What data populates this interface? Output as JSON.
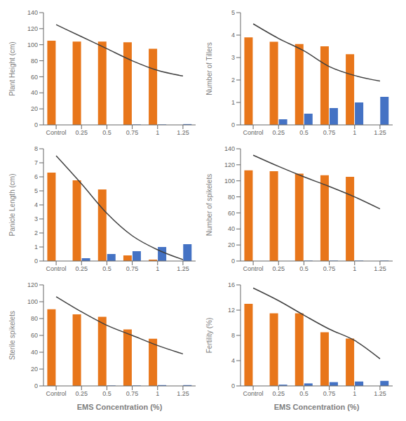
{
  "chart_data": [
    {
      "type": "bar",
      "categories": [
        "Control",
        "0.25",
        "0.5",
        "0.75",
        "1",
        "1.25"
      ],
      "series": [
        {
          "color": "#E8761A",
          "values": [
            105,
            104,
            104,
            103,
            95,
            0
          ]
        },
        {
          "color": "#4472C4",
          "values": [
            0,
            0,
            0,
            0.5,
            0.5,
            1.0
          ]
        },
        {
          "type": "line",
          "color": "#404040",
          "values": [
            125,
            110,
            95,
            80,
            68,
            61
          ]
        }
      ],
      "ylim": [
        0,
        140
      ],
      "yticks": [
        0,
        20,
        40,
        60,
        80,
        100,
        120,
        140
      ],
      "ylabel": "Plant Height (cm)",
      "grid": false
    },
    {
      "type": "bar",
      "categories": [
        "Control",
        "0.25",
        "0.5",
        "0.75",
        "1",
        "1.25"
      ],
      "series": [
        {
          "color": "#E8761A",
          "values": [
            3.9,
            3.7,
            3.6,
            3.5,
            3.15,
            0
          ]
        },
        {
          "color": "#4472C4",
          "values": [
            0,
            0.25,
            0.5,
            0.75,
            1.0,
            1.25
          ]
        },
        {
          "type": "line",
          "color": "#404040",
          "values": [
            4.5,
            3.85,
            3.3,
            2.6,
            2.2,
            1.95
          ]
        }
      ],
      "ylim": [
        0,
        5
      ],
      "yticks": [
        0,
        1,
        2,
        3,
        4,
        5
      ],
      "ylabel": "Number of Tillers",
      "grid": false
    },
    {
      "type": "bar",
      "categories": [
        "Control",
        "0.25",
        "0.5",
        "0.75",
        "1",
        "1.25"
      ],
      "series": [
        {
          "color": "#E8761A",
          "values": [
            6.3,
            5.75,
            5.1,
            0.4,
            0.1,
            0
          ]
        },
        {
          "color": "#4472C4",
          "values": [
            0,
            0.2,
            0.5,
            0.7,
            1.0,
            1.2
          ]
        },
        {
          "type": "line",
          "color": "#404040",
          "values": [
            7.5,
            5.5,
            3.4,
            1.8,
            0.8,
            0.1
          ]
        }
      ],
      "ylim": [
        0,
        8
      ],
      "yticks": [
        0,
        1,
        2,
        3,
        4,
        5,
        6,
        7,
        8
      ],
      "ylabel": "Panicle Length (cm)",
      "grid": false
    },
    {
      "type": "bar",
      "categories": [
        "Control",
        "0.25",
        "0.5",
        "0.75",
        "1",
        "1.25"
      ],
      "series": [
        {
          "color": "#E8761A",
          "values": [
            113,
            112,
            109,
            107,
            105,
            0
          ]
        },
        {
          "color": "#4472C4",
          "values": [
            0,
            0,
            0.5,
            0.5,
            0.5,
            0.5
          ]
        },
        {
          "type": "line",
          "color": "#404040",
          "values": [
            132,
            118,
            105,
            93,
            80,
            65
          ]
        }
      ],
      "ylim": [
        0,
        140
      ],
      "yticks": [
        0,
        20,
        40,
        60,
        80,
        100,
        120,
        140
      ],
      "ylabel": "Number of spikelets",
      "grid": false
    },
    {
      "type": "bar",
      "categories": [
        "Control",
        "0.25",
        "0.5",
        "0.75",
        "1",
        "1.25"
      ],
      "series": [
        {
          "color": "#E8761A",
          "values": [
            91,
            85,
            82,
            67,
            56,
            0
          ]
        },
        {
          "color": "#4472C4",
          "values": [
            0,
            0,
            0.5,
            0.5,
            1.0,
            1.0
          ]
        },
        {
          "type": "line",
          "color": "#404040",
          "values": [
            106,
            88,
            72,
            60,
            48,
            38
          ]
        }
      ],
      "ylim": [
        0,
        120
      ],
      "yticks": [
        0,
        20,
        40,
        60,
        80,
        100,
        120
      ],
      "ylabel": "Sterile spikelets",
      "xlabel": "EMS Concentration (%)",
      "grid": false
    },
    {
      "type": "bar",
      "categories": [
        "Control",
        "0.25",
        "0.5",
        "0.75",
        "1",
        "1.25"
      ],
      "series": [
        {
          "color": "#E8761A",
          "values": [
            13.0,
            11.5,
            11.5,
            8.5,
            7.5,
            0
          ]
        },
        {
          "color": "#4472C4",
          "values": [
            0,
            0.2,
            0.4,
            0.6,
            0.7,
            0.8
          ]
        },
        {
          "type": "line",
          "color": "#404040",
          "values": [
            15.5,
            13.5,
            11.2,
            9.0,
            7.2,
            4.3
          ]
        }
      ],
      "ylim": [
        0,
        16
      ],
      "yticks": [
        0,
        4,
        8,
        12,
        16
      ],
      "ylabel": "Fertility (%)",
      "xlabel": "EMS Concentration (%)",
      "grid": false
    }
  ]
}
